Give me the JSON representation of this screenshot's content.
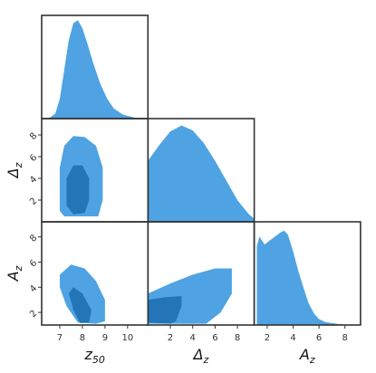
{
  "chart_data": {
    "type": "corner",
    "colors": {
      "outer": "#4fa3e2",
      "inner": "#2375b8",
      "frame": "#333333"
    },
    "variables": [
      {
        "symbol": "z",
        "subscript": "50",
        "lim": [
          6.2,
          10.9
        ],
        "ticks": [
          7,
          8,
          9,
          10
        ]
      },
      {
        "symbol": "Δ",
        "subscript": "z",
        "lim": [
          0,
          9.5
        ],
        "ticks": [
          2,
          4,
          6,
          8
        ]
      },
      {
        "symbol": "A",
        "subscript": "z",
        "lim": [
          1,
          9.2
        ],
        "ticks": [
          2,
          4,
          6,
          8
        ]
      }
    ],
    "panels": [
      {
        "type": "density",
        "var": 0,
        "ylim": [
          0,
          1.05
        ],
        "x": [
          6.5,
          6.8,
          7.0,
          7.2,
          7.4,
          7.6,
          7.8,
          8.0,
          8.2,
          8.5,
          8.8,
          9.1,
          9.4,
          9.8,
          10.3,
          10.8
        ],
        "y": [
          0,
          0.05,
          0.2,
          0.5,
          0.8,
          0.97,
          1.0,
          0.92,
          0.78,
          0.55,
          0.35,
          0.2,
          0.1,
          0.04,
          0.01,
          0
        ]
      },
      {
        "type": "density",
        "var": 1,
        "ylim": [
          0,
          1.05
        ],
        "x": [
          0,
          1,
          2,
          3,
          4,
          5,
          6,
          7,
          8,
          9,
          9.5
        ],
        "y": [
          0.62,
          0.78,
          0.92,
          0.98,
          0.93,
          0.8,
          0.62,
          0.42,
          0.22,
          0.08,
          0.03
        ]
      },
      {
        "type": "density",
        "var": 2,
        "ylim": [
          0,
          1.05
        ],
        "x": [
          1.2,
          1.4,
          1.8,
          2.2,
          2.6,
          3.0,
          3.3,
          3.6,
          4.0,
          4.4,
          4.8,
          5.2,
          5.6,
          6.0,
          6.5,
          7.0,
          7.5,
          8.0,
          8.5
        ],
        "y": [
          0.8,
          0.9,
          0.82,
          0.86,
          0.9,
          0.94,
          0.96,
          0.92,
          0.75,
          0.55,
          0.38,
          0.22,
          0.12,
          0.06,
          0.03,
          0.02,
          0.01,
          0.005,
          0
        ]
      },
      {
        "type": "contour",
        "x_var": 0,
        "y_var": 1,
        "levels": [
          {
            "level": "outer",
            "x": [
              7.0,
              7.0,
              7.2,
              7.6,
              8.1,
              8.6,
              8.9,
              8.9,
              8.7,
              7.2
            ],
            "y": [
              1.0,
              5,
              7,
              7.9,
              7.8,
              7,
              5,
              2,
              0.5,
              0.5
            ]
          },
          {
            "level": "inner",
            "x": [
              7.3,
              7.3,
              7.6,
              8.0,
              8.3,
              8.3,
              8.1,
              7.6
            ],
            "y": [
              1.5,
              4,
              5.2,
              5.2,
              4,
              2,
              0.8,
              0.7
            ]
          }
        ]
      },
      {
        "type": "contour",
        "x_var": 0,
        "y_var": 2,
        "levels": [
          {
            "level": "outer",
            "x": [
              7.0,
              7.5,
              8.1,
              8.6,
              9.0,
              9.0,
              8.6,
              7.8,
              7.3,
              7.0
            ],
            "y": [
              5.0,
              5.8,
              5.5,
              4.5,
              3,
              1.3,
              1.1,
              1.2,
              2.5,
              4
            ]
          },
          {
            "level": "inner",
            "x": [
              7.4,
              7.6,
              8.0,
              8.4,
              8.3,
              7.9,
              7.6
            ],
            "y": [
              3.5,
              4.0,
              3.5,
              2.2,
              1.2,
              1.15,
              2.2
            ]
          }
        ]
      },
      {
        "type": "contour",
        "x_var": 1,
        "y_var": 2,
        "levels": [
          {
            "level": "outer",
            "x": [
              0,
              0,
              2,
              4,
              6,
              7.5,
              7.5,
              6.5,
              5.2
            ],
            "y": [
              1.1,
              3.5,
              4.3,
              5.0,
              5.5,
              5.5,
              3.5,
              2.0,
              1.1
            ]
          },
          {
            "level": "inner",
            "x": [
              0,
              0,
              1.5,
              3,
              3.0,
              2.5,
              2
            ],
            "y": [
              1.2,
              3.0,
              3.2,
              3.3,
              2.5,
              1.3,
              1.1
            ]
          }
        ]
      }
    ]
  }
}
